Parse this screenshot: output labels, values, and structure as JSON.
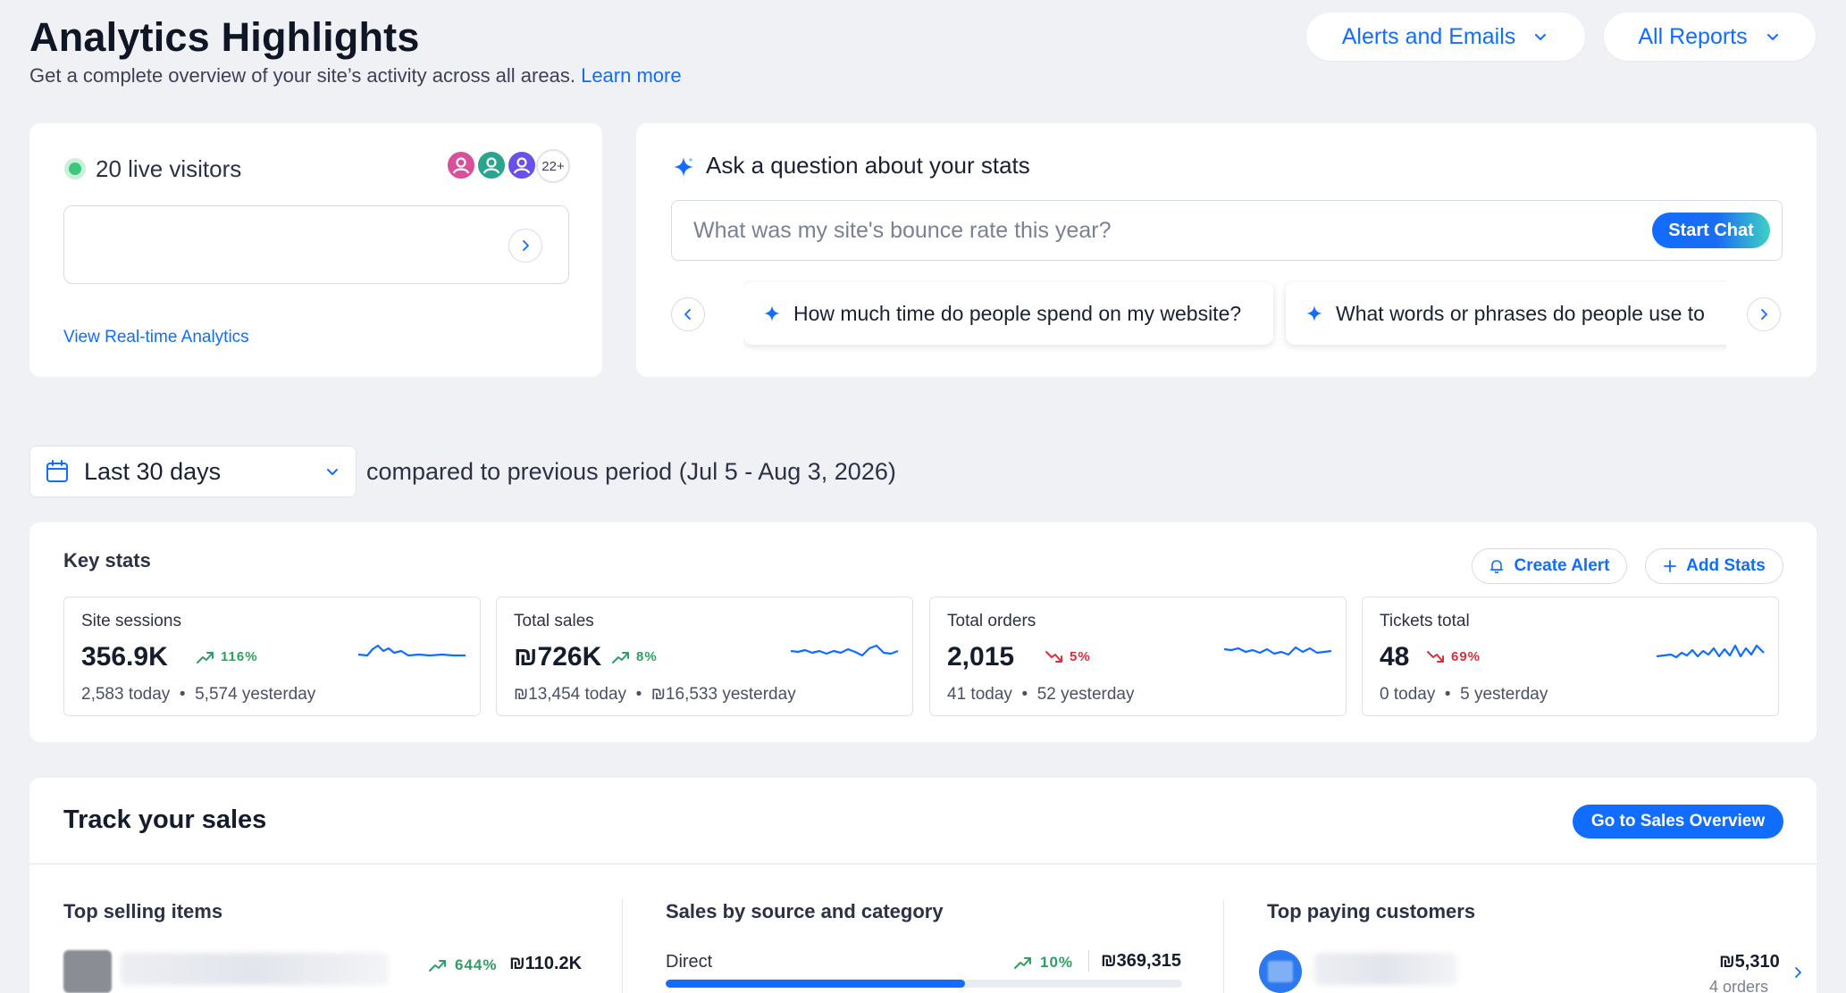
{
  "header": {
    "title": "Analytics Highlights",
    "subtitle": "Get a complete overview of your site’s activity across all areas.",
    "learn_more": "Learn more",
    "alerts_button": "Alerts and Emails",
    "reports_button": "All Reports"
  },
  "live": {
    "visitors_text": "20 live visitors",
    "more_count": "22+",
    "view_link": "View Real-time Analytics",
    "avatar_colors": [
      "#d8509b",
      "#2aa48f",
      "#6a4fe8"
    ]
  },
  "ask": {
    "title": "Ask a question about your stats",
    "placeholder": "What was my site's bounce rate this year?",
    "start_button": "Start Chat",
    "suggestions": [
      "How much time do people spend on my website?",
      "What words or phrases do people use to"
    ]
  },
  "period": {
    "selected": "Last 30 days",
    "comparison": "compared to previous period (Jul 5 - Aug 3, 2026)"
  },
  "key_stats": {
    "title": "Key stats",
    "create_alert": "Create Alert",
    "add_stats": "Add Stats",
    "cards": [
      {
        "title": "Site sessions",
        "value": "356.9K",
        "change": "116%",
        "direction": "up",
        "today": "2,583 today",
        "yesterday": "5,574 yesterday"
      },
      {
        "title": "Total sales",
        "value": "₪726K",
        "change": "8%",
        "direction": "up",
        "today": "₪13,454 today",
        "yesterday": "₪16,533 yesterday"
      },
      {
        "title": "Total orders",
        "value": "2,015",
        "change": "5%",
        "direction": "down",
        "today": "41 today",
        "yesterday": "52 yesterday"
      },
      {
        "title": "Tickets total",
        "value": "48",
        "change": "69%",
        "direction": "down",
        "today": "0 today",
        "yesterday": "5 yesterday"
      }
    ]
  },
  "sales": {
    "title": "Track your sales",
    "overview_button": "Go to Sales Overview",
    "top_items": {
      "title": "Top selling items",
      "change": "644%",
      "value": "₪110.2K"
    },
    "by_source": {
      "title": "Sales by source and category",
      "label": "Direct",
      "change": "10%",
      "value": "₪369,315",
      "fill": 0.58
    },
    "top_customers": {
      "title": "Top paying customers",
      "value": "₪5,310",
      "orders": "4 orders"
    }
  },
  "colors": {
    "accent": "#116dff",
    "positive": "#2f9e62",
    "negative": "#e02c3a",
    "live": "#3cc77a"
  }
}
